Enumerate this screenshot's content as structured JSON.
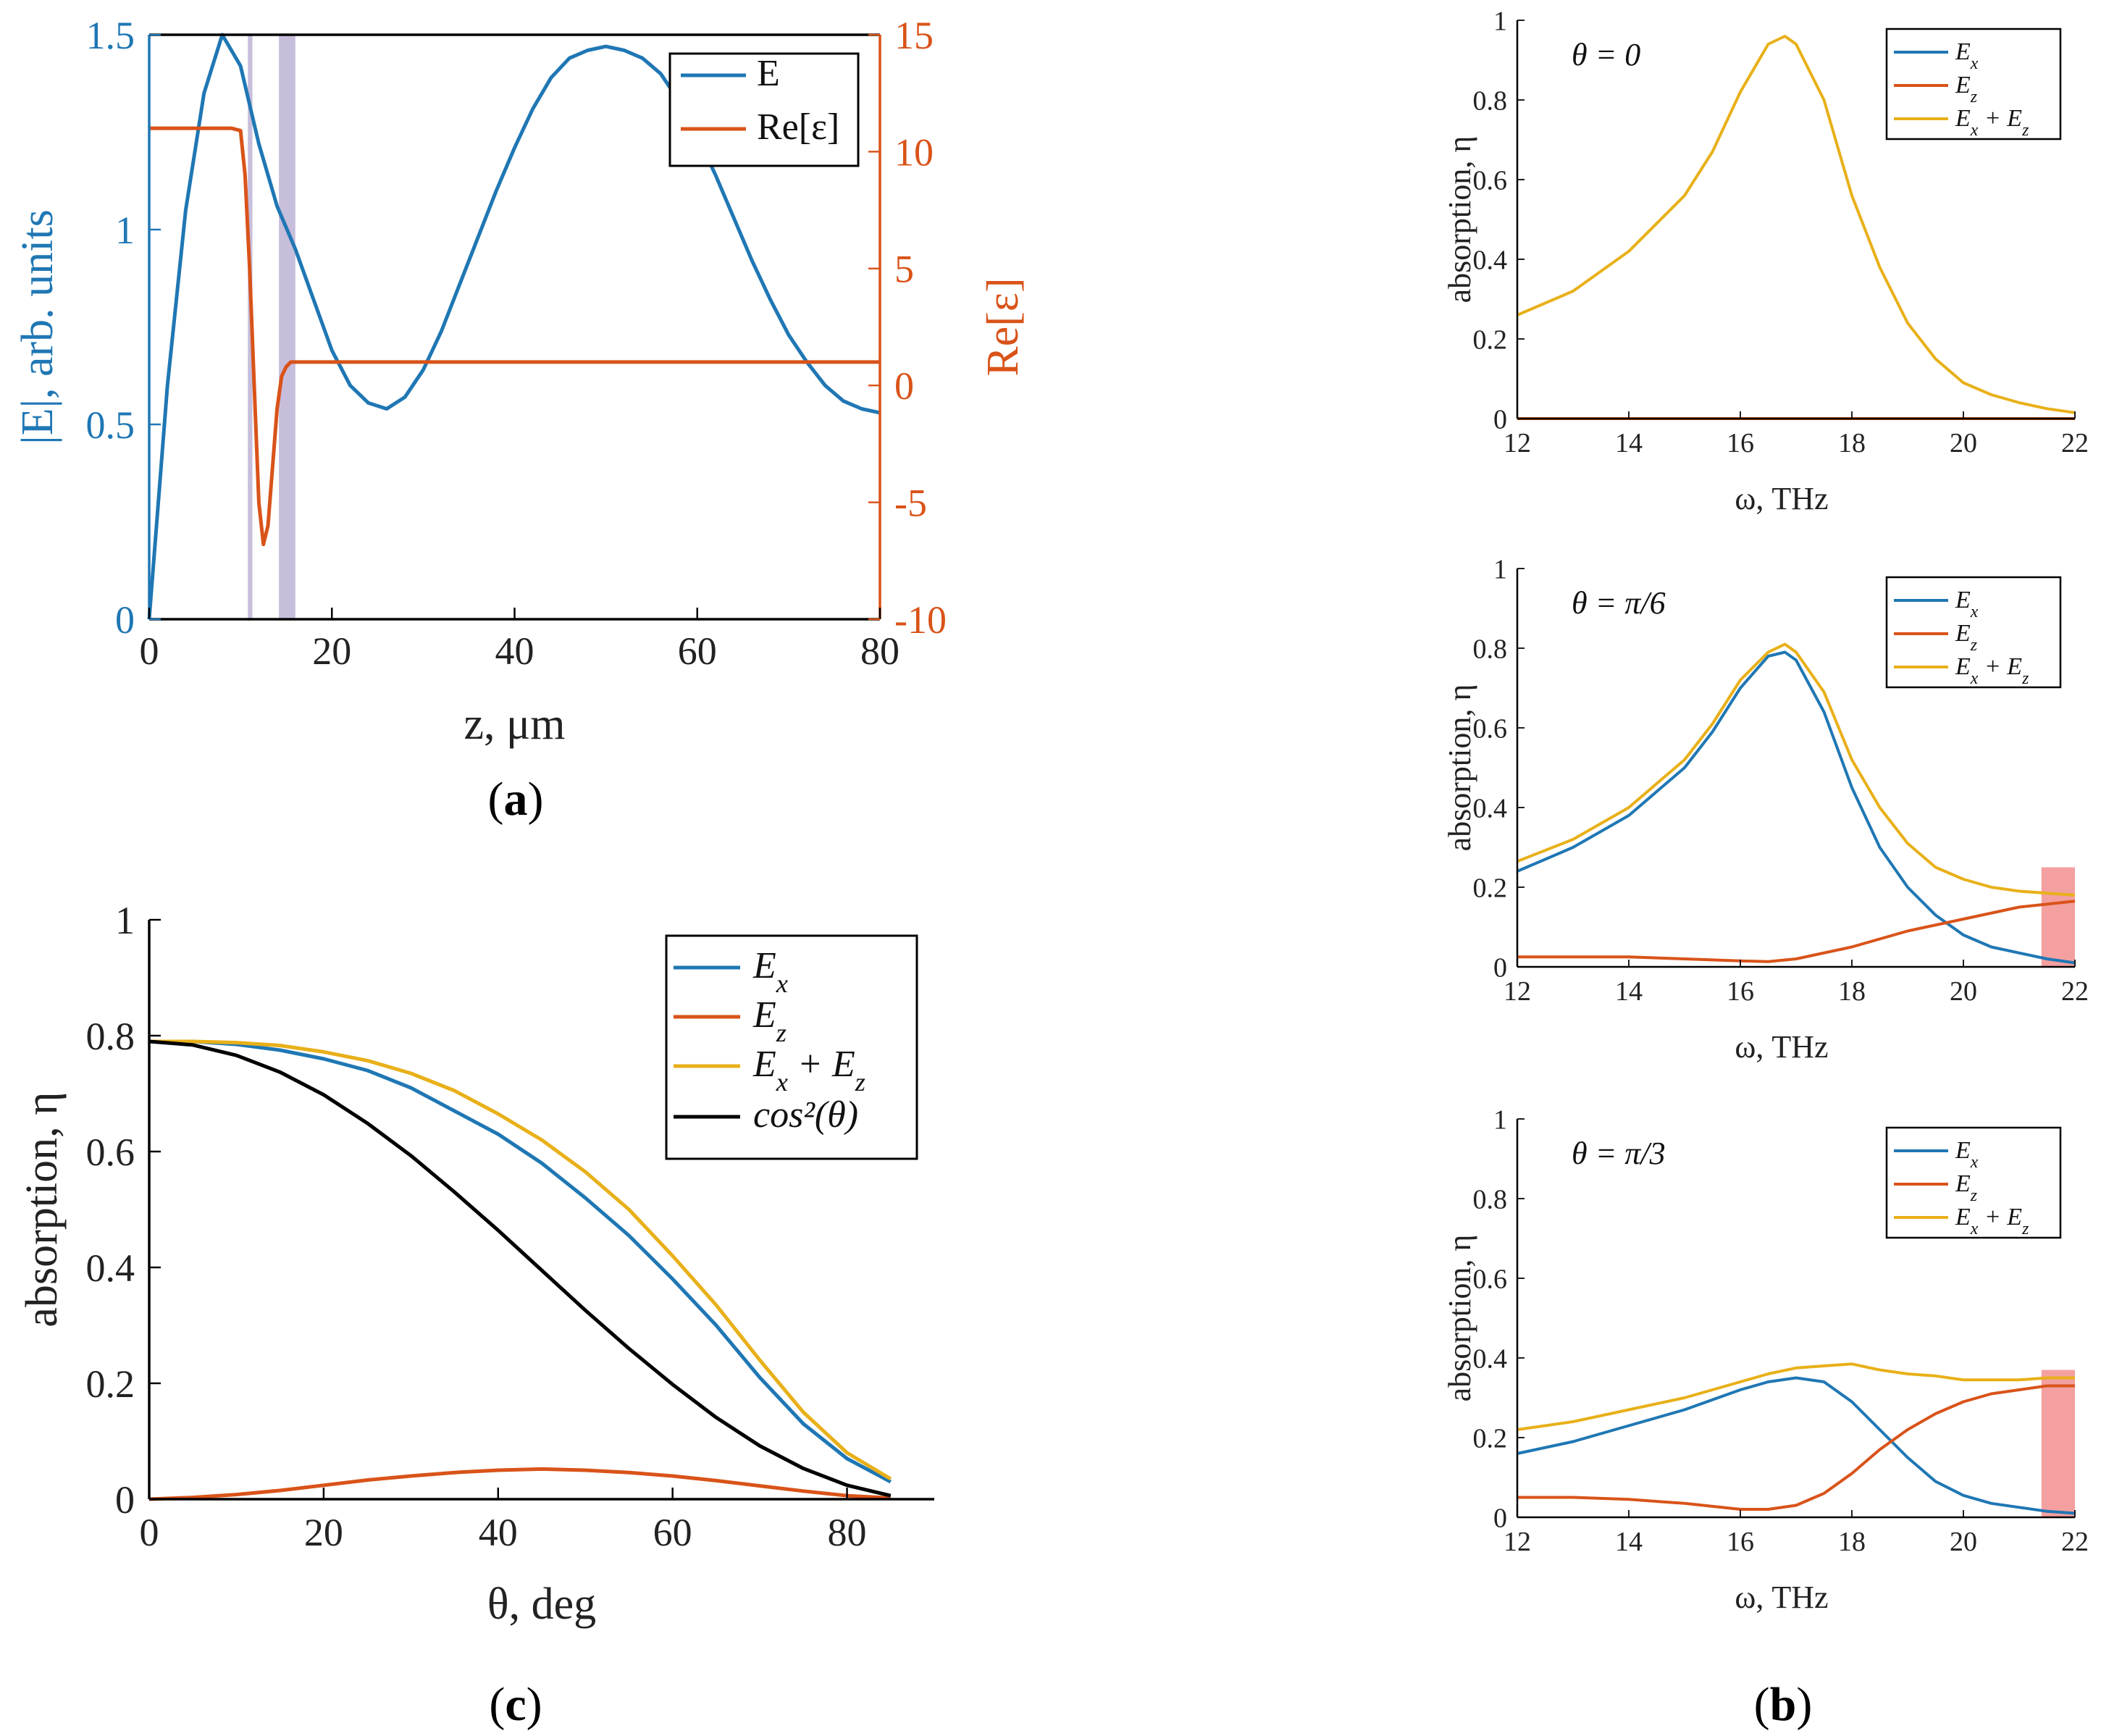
{
  "colors": {
    "blue": "#1f77b4",
    "orange": "#d95319",
    "yellow": "#e8b019",
    "black": "#000000",
    "shade": "#b9aed3",
    "red": "#f08080"
  },
  "chart_data": [
    {
      "id": "a",
      "type": "line",
      "panel_label": "(a)",
      "bold_letter": "a",
      "xlabel": "z, μm",
      "ylabel": "|E|, arb. units",
      "y2label": "Re[ε]",
      "xlim": [
        0,
        80
      ],
      "ylim": [
        0,
        1.5
      ],
      "y2lim": [
        -10,
        15
      ],
      "xticks": [
        "0",
        "20",
        "40",
        "60",
        "80"
      ],
      "yticks": [
        "0",
        "0.5",
        "1",
        "1.5"
      ],
      "y2ticks": [
        "-10",
        "-5",
        "0",
        "5",
        "10",
        "15"
      ],
      "legend": [
        "E",
        "Re[ε]"
      ],
      "shaded_regions": [
        [
          10.8,
          11.3
        ],
        [
          14.2,
          16.0
        ]
      ],
      "series": [
        {
          "name": "E",
          "axis": "left",
          "color": "#1f77b4",
          "x": [
            0,
            2,
            4,
            6,
            8,
            10,
            12,
            14,
            16,
            18,
            20,
            22,
            24,
            26,
            28,
            30,
            32,
            34,
            36,
            38,
            40,
            42,
            44,
            46,
            48,
            50,
            52,
            54,
            56,
            58,
            60,
            62,
            64,
            66,
            68,
            70,
            72,
            74,
            76,
            78,
            80
          ],
          "y": [
            0,
            0.6,
            1.05,
            1.35,
            1.5,
            1.42,
            1.22,
            1.06,
            0.95,
            0.82,
            0.69,
            0.6,
            0.555,
            0.54,
            0.57,
            0.64,
            0.74,
            0.86,
            0.98,
            1.1,
            1.21,
            1.31,
            1.39,
            1.44,
            1.46,
            1.47,
            1.46,
            1.44,
            1.4,
            1.33,
            1.24,
            1.14,
            1.03,
            0.92,
            0.82,
            0.73,
            0.66,
            0.6,
            0.56,
            0.54,
            0.53
          ]
        },
        {
          "name": "Re[ε]",
          "axis": "right",
          "color": "#d95319",
          "x": [
            0,
            5,
            8,
            9,
            10,
            10.5,
            11,
            11.5,
            12,
            12.5,
            13,
            13.5,
            14,
            14.5,
            15,
            15.5,
            16,
            20,
            40,
            60,
            80
          ],
          "y": [
            11,
            11,
            11,
            11,
            10.9,
            9,
            5,
            0,
            -5,
            -6.8,
            -6,
            -3.5,
            -1,
            0.4,
            0.8,
            1,
            1,
            1,
            1,
            1,
            1
          ]
        }
      ]
    },
    {
      "id": "b1",
      "type": "line",
      "annotation": "θ = 0",
      "xlabel": "ω,  THz",
      "ylabel": "absorption, η",
      "xlim": [
        12,
        22
      ],
      "ylim": [
        0,
        1
      ],
      "xticks": [
        "12",
        "14",
        "16",
        "18",
        "20",
        "22"
      ],
      "yticks": [
        "0",
        "0.2",
        "0.4",
        "0.6",
        "0.8",
        "1"
      ],
      "legend": [
        "E_x",
        "E_z",
        "E_x + E_z"
      ],
      "series": [
        {
          "name": "E_x",
          "color": "#1f77b4",
          "x": [
            12,
            22
          ],
          "y": [
            0,
            0
          ]
        },
        {
          "name": "E_z",
          "color": "#d95319",
          "x": [
            12,
            22
          ],
          "y": [
            0,
            0
          ]
        },
        {
          "name": "E_x + E_z",
          "color": "#e8b019",
          "x": [
            12,
            13,
            14,
            15,
            15.5,
            16,
            16.5,
            16.8,
            17,
            17.5,
            18,
            18.5,
            19,
            19.5,
            20,
            20.5,
            21,
            21.5,
            22
          ],
          "y": [
            0.26,
            0.32,
            0.42,
            0.56,
            0.67,
            0.82,
            0.94,
            0.96,
            0.94,
            0.8,
            0.56,
            0.38,
            0.24,
            0.15,
            0.09,
            0.06,
            0.04,
            0.025,
            0.015
          ]
        }
      ]
    },
    {
      "id": "b2",
      "type": "line",
      "annotation": "θ = π/6",
      "xlabel": "ω,  THz",
      "ylabel": "absorption, η",
      "xlim": [
        12,
        22
      ],
      "ylim": [
        0,
        1
      ],
      "xticks": [
        "12",
        "14",
        "16",
        "18",
        "20",
        "22"
      ],
      "yticks": [
        "0",
        "0.2",
        "0.4",
        "0.6",
        "0.8",
        "1"
      ],
      "legend": [
        "E_x",
        "E_z",
        "E_x + E_z"
      ],
      "highlight_x": [
        21.4,
        22
      ],
      "highlight_ymax": 0.25,
      "series": [
        {
          "name": "E_x",
          "color": "#1f77b4",
          "x": [
            12,
            13,
            14,
            15,
            15.5,
            16,
            16.5,
            16.8,
            17,
            17.5,
            18,
            18.5,
            19,
            19.5,
            20,
            20.5,
            21,
            21.5,
            22
          ],
          "y": [
            0.24,
            0.3,
            0.38,
            0.5,
            0.59,
            0.7,
            0.78,
            0.79,
            0.77,
            0.64,
            0.45,
            0.3,
            0.2,
            0.13,
            0.08,
            0.05,
            0.035,
            0.02,
            0.01
          ]
        },
        {
          "name": "E_z",
          "color": "#d95319",
          "x": [
            12,
            13,
            14,
            15,
            16,
            16.5,
            17,
            18,
            19,
            20,
            21,
            22
          ],
          "y": [
            0.025,
            0.025,
            0.025,
            0.02,
            0.015,
            0.013,
            0.02,
            0.05,
            0.09,
            0.12,
            0.15,
            0.165
          ]
        },
        {
          "name": "E_x + E_z",
          "color": "#e8b019",
          "x": [
            12,
            13,
            14,
            15,
            15.5,
            16,
            16.5,
            16.8,
            17,
            17.5,
            18,
            18.5,
            19,
            19.5,
            20,
            20.5,
            21,
            21.5,
            22
          ],
          "y": [
            0.265,
            0.32,
            0.4,
            0.52,
            0.61,
            0.72,
            0.79,
            0.81,
            0.79,
            0.69,
            0.52,
            0.4,
            0.31,
            0.25,
            0.22,
            0.2,
            0.19,
            0.185,
            0.18
          ]
        }
      ]
    },
    {
      "id": "b3",
      "type": "line",
      "annotation": "θ = π/3",
      "xlabel": "ω,  THz",
      "ylabel": "absorption, η",
      "xlim": [
        12,
        22
      ],
      "ylim": [
        0,
        1
      ],
      "xticks": [
        "12",
        "14",
        "16",
        "18",
        "20",
        "22"
      ],
      "yticks": [
        "0",
        "0.2",
        "0.4",
        "0.6",
        "0.8",
        "1"
      ],
      "legend": [
        "E_x",
        "E_z",
        "E_x + E_z"
      ],
      "highlight_x": [
        21.4,
        22
      ],
      "highlight_ymax": 0.37,
      "series": [
        {
          "name": "E_x",
          "color": "#1f77b4",
          "x": [
            12,
            13,
            14,
            15,
            16,
            16.5,
            17,
            17.5,
            18,
            18.5,
            19,
            19.5,
            20,
            20.5,
            21,
            21.5,
            22
          ],
          "y": [
            0.16,
            0.19,
            0.23,
            0.27,
            0.32,
            0.34,
            0.35,
            0.34,
            0.29,
            0.22,
            0.15,
            0.09,
            0.055,
            0.035,
            0.025,
            0.015,
            0.01
          ]
        },
        {
          "name": "E_z",
          "color": "#d95319",
          "x": [
            12,
            13,
            14,
            15,
            16,
            16.5,
            17,
            17.5,
            18,
            18.5,
            19,
            19.5,
            20,
            20.5,
            21,
            21.5,
            22
          ],
          "y": [
            0.05,
            0.05,
            0.045,
            0.035,
            0.02,
            0.02,
            0.03,
            0.06,
            0.11,
            0.17,
            0.22,
            0.26,
            0.29,
            0.31,
            0.32,
            0.33,
            0.33
          ]
        },
        {
          "name": "E_x + E_z",
          "color": "#e8b019",
          "x": [
            12,
            13,
            14,
            15,
            16,
            16.5,
            17,
            17.5,
            18,
            18.5,
            19,
            19.5,
            20,
            20.5,
            21,
            21.5,
            22
          ],
          "y": [
            0.22,
            0.24,
            0.27,
            0.3,
            0.34,
            0.36,
            0.375,
            0.38,
            0.385,
            0.37,
            0.36,
            0.355,
            0.345,
            0.345,
            0.345,
            0.35,
            0.35
          ]
        }
      ]
    },
    {
      "id": "c",
      "type": "line",
      "panel_label": "(c)",
      "bold_letter": "c",
      "xlabel": "θ, deg",
      "ylabel": "absorption, η",
      "xlim": [
        0,
        90
      ],
      "ylim": [
        0,
        1
      ],
      "xticks": [
        "0",
        "20",
        "40",
        "60",
        "80"
      ],
      "yticks": [
        "0",
        "0.2",
        "0.4",
        "0.6",
        "0.8",
        "1"
      ],
      "legend": [
        "E_x",
        "E_z",
        "E_x + E_z",
        "cos²(θ)"
      ],
      "series": [
        {
          "name": "E_x",
          "color": "#1f77b4",
          "x": [
            0,
            5,
            10,
            15,
            20,
            25,
            30,
            35,
            40,
            45,
            50,
            55,
            60,
            65,
            70,
            75,
            80,
            85
          ],
          "y": [
            0.79,
            0.79,
            0.785,
            0.775,
            0.76,
            0.74,
            0.71,
            0.67,
            0.63,
            0.58,
            0.52,
            0.455,
            0.38,
            0.3,
            0.21,
            0.13,
            0.07,
            0.03
          ]
        },
        {
          "name": "E_z",
          "color": "#d95319",
          "x": [
            0,
            5,
            10,
            15,
            20,
            25,
            30,
            35,
            40,
            45,
            50,
            55,
            60,
            65,
            70,
            75,
            80,
            85
          ],
          "y": [
            0,
            0.003,
            0.008,
            0.015,
            0.024,
            0.033,
            0.04,
            0.046,
            0.05,
            0.052,
            0.05,
            0.046,
            0.04,
            0.032,
            0.023,
            0.014,
            0.006,
            0.002
          ]
        },
        {
          "name": "E_x + E_z",
          "color": "#e8b019",
          "x": [
            0,
            5,
            10,
            15,
            20,
            25,
            30,
            35,
            40,
            45,
            50,
            55,
            60,
            65,
            70,
            75,
            80,
            85
          ],
          "y": [
            0.79,
            0.79,
            0.788,
            0.783,
            0.772,
            0.757,
            0.735,
            0.705,
            0.665,
            0.62,
            0.565,
            0.5,
            0.42,
            0.335,
            0.24,
            0.15,
            0.08,
            0.035
          ]
        },
        {
          "name": "cos²(θ)",
          "color": "#000000",
          "x": [
            0,
            5,
            10,
            15,
            20,
            25,
            30,
            35,
            40,
            45,
            50,
            55,
            60,
            65,
            70,
            75,
            80,
            85
          ],
          "y": [
            0.79,
            0.784,
            0.766,
            0.737,
            0.698,
            0.649,
            0.593,
            0.53,
            0.464,
            0.395,
            0.326,
            0.26,
            0.198,
            0.141,
            0.092,
            0.053,
            0.024,
            0.006
          ]
        }
      ]
    }
  ]
}
